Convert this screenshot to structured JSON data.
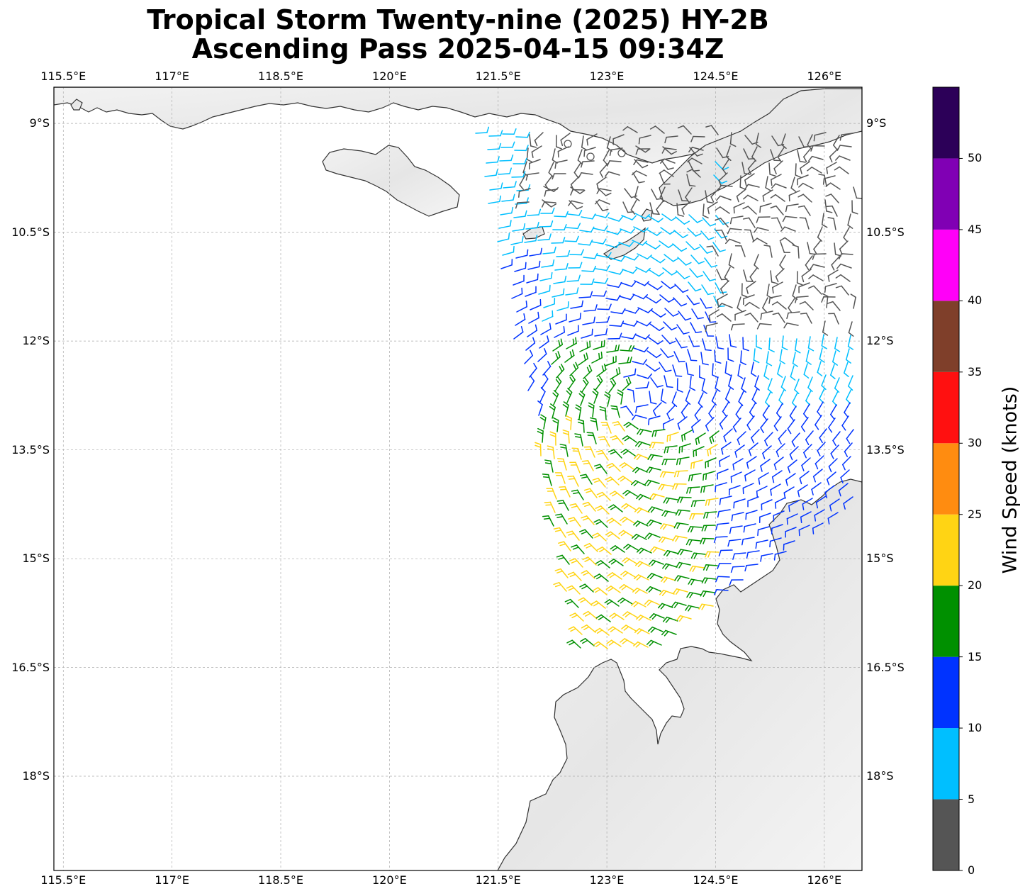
{
  "title_line1": "Tropical Storm Twenty-nine (2025) HY-2B",
  "title_line2": "Ascending Pass 2025-04-15 09:34Z",
  "colorbar": {
    "label": "Wind Speed (knots)",
    "ticks": [
      "0",
      "5",
      "10",
      "15",
      "20",
      "25",
      "30",
      "35",
      "40",
      "45",
      "50"
    ],
    "colors": [
      "#555555",
      "#00bfff",
      "#0033ff",
      "#009000",
      "#ffd414",
      "#ff8c10",
      "#ff1010",
      "#7f3f2a",
      "#ff00f8",
      "#8000b4",
      "#2c0058"
    ],
    "bin_edges": [
      0,
      5,
      10,
      15,
      20,
      25,
      30,
      35,
      40,
      45,
      50,
      55
    ]
  },
  "map": {
    "lon_range": [
      115.37,
      126.52
    ],
    "lat_range": [
      -19.3,
      -8.5
    ],
    "lon_ticks": [
      "115.5°E",
      "117°E",
      "118.5°E",
      "120°E",
      "121.5°E",
      "123°E",
      "124.5°E",
      "126°E"
    ],
    "lat_ticks": [
      "9°S",
      "10.5°S",
      "12°S",
      "13.5°S",
      "15°S",
      "16.5°S",
      "18°S"
    ],
    "gridlines": true,
    "barb_colors": {
      "calm": "#555555",
      "light": "#00bfff",
      "moderate": "#0033ff",
      "fresh": "#009000",
      "strong": "#ffd414"
    },
    "land_color": "#e4e4e4",
    "coast_color": "#333333"
  }
}
